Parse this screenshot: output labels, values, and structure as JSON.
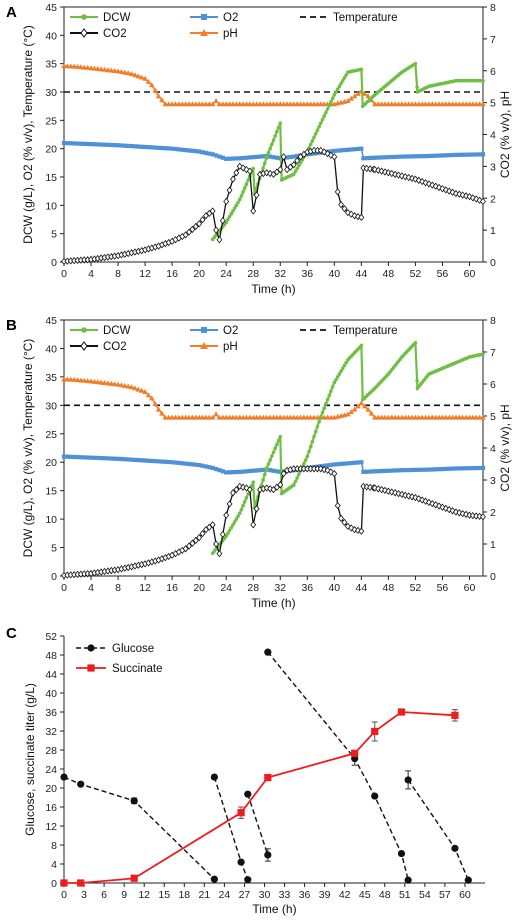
{
  "figure": {
    "background": "#ffffff"
  },
  "colors": {
    "dcw": "#6fbf44",
    "o2": "#4f91d6",
    "co2": "#111111",
    "ph": "#f07f2c",
    "temperature": "#111111",
    "glucose": "#111111",
    "succinate": "#ee1c1c"
  },
  "chart_data": [
    {
      "panel_label": "A",
      "type": "line",
      "xlabel": "Time (h)",
      "ylabel_left": "DCW (g/L), O2 (% v/v), Temperature (°C)",
      "ylabel_right": "CO2 (% v/v), pH",
      "xlim": [
        0,
        62
      ],
      "ylim_left": [
        0,
        45
      ],
      "ylim_right": [
        0,
        8
      ],
      "xticks": [
        "0",
        "4",
        "8",
        "12",
        "16",
        "20",
        "24",
        "28",
        "32",
        "36",
        "40",
        "44",
        "48",
        "52",
        "56",
        "60"
      ],
      "yticks_left": [
        "0",
        "5",
        "10",
        "15",
        "20",
        "25",
        "30",
        "35",
        "40",
        "45"
      ],
      "yticks_right": [
        "0",
        "1",
        "2",
        "3",
        "4",
        "5",
        "6",
        "7",
        "8"
      ],
      "legend": [
        {
          "key": "dcw",
          "label": "DCW"
        },
        {
          "key": "o2",
          "label": "O2"
        },
        {
          "key": "temperature",
          "label": "Temperature"
        },
        {
          "key": "co2",
          "label": "CO2"
        },
        {
          "key": "ph",
          "label": "pH"
        }
      ],
      "series": [
        {
          "key": "dcw",
          "name": "DCW",
          "axis": "left",
          "x": [
            22,
            24,
            26,
            28,
            28.2,
            30,
            32,
            32.2,
            34,
            36,
            38,
            40,
            42,
            44,
            44.2,
            46,
            48,
            50,
            52,
            52.3,
            54,
            56,
            58,
            60,
            62
          ],
          "y": [
            4,
            7,
            11,
            16.5,
            12,
            18.5,
            24.5,
            14.5,
            15.5,
            19.5,
            24.5,
            29.5,
            33.5,
            34,
            27.5,
            29.5,
            31.5,
            33.5,
            35,
            30,
            31,
            31.5,
            32,
            32,
            32
          ]
        },
        {
          "key": "o2",
          "name": "O2",
          "axis": "left",
          "x": [
            0,
            4,
            8,
            12,
            16,
            20,
            22,
            24,
            26,
            28,
            30,
            32,
            34,
            36,
            38,
            40,
            42,
            44,
            44.3,
            46,
            50,
            54,
            58,
            62
          ],
          "y": [
            21,
            20.8,
            20.6,
            20.3,
            20,
            19.5,
            19,
            18.2,
            18.3,
            18.5,
            18.7,
            18.3,
            18.6,
            19,
            19.3,
            19.6,
            19.8,
            20,
            18.3,
            18.4,
            18.6,
            18.7,
            18.9,
            19
          ]
        },
        {
          "key": "temperature",
          "name": "Temperature",
          "axis": "left",
          "x": [
            0,
            62
          ],
          "y": [
            30,
            30
          ]
        },
        {
          "key": "co2",
          "name": "CO2",
          "axis": "right",
          "x": [
            0,
            4,
            8,
            12,
            14,
            16,
            18,
            20,
            21,
            22,
            22.5,
            23,
            24,
            25,
            26,
            27,
            27.5,
            28,
            28.5,
            29,
            30,
            31,
            32,
            32.5,
            33,
            34,
            35,
            36,
            37,
            38,
            39,
            40,
            40.5,
            41,
            42,
            43,
            44,
            44.3,
            46,
            48,
            50,
            52,
            54,
            56,
            58,
            60,
            62
          ],
          "y": [
            0.02,
            0.08,
            0.2,
            0.38,
            0.5,
            0.65,
            0.85,
            1.2,
            1.45,
            1.6,
            1.0,
            0.7,
            1.9,
            2.6,
            3.0,
            2.9,
            2.85,
            1.6,
            2.1,
            2.75,
            2.8,
            2.75,
            2.9,
            3.3,
            2.9,
            3.05,
            3.3,
            3.45,
            3.5,
            3.5,
            3.4,
            3.3,
            2.2,
            1.8,
            1.55,
            1.45,
            1.4,
            2.95,
            2.9,
            2.8,
            2.7,
            2.6,
            2.45,
            2.3,
            2.15,
            2.05,
            1.9
          ]
        },
        {
          "key": "ph",
          "name": "pH",
          "axis": "right",
          "x": [
            0,
            2,
            4,
            6,
            8,
            10,
            12,
            13,
            14,
            15,
            16,
            18,
            20,
            22,
            22.5,
            23,
            24,
            26,
            28,
            30,
            32,
            34,
            36,
            38,
            40,
            42,
            43,
            44,
            45,
            46,
            47,
            48,
            50,
            52,
            54,
            56,
            58,
            60,
            62
          ],
          "y": [
            6.15,
            6.12,
            6.08,
            6.03,
            5.98,
            5.9,
            5.75,
            5.55,
            5.2,
            4.95,
            4.95,
            4.95,
            4.95,
            4.95,
            5.05,
            4.95,
            4.95,
            4.95,
            4.95,
            4.95,
            4.95,
            4.95,
            4.95,
            4.95,
            4.95,
            5.05,
            5.2,
            5.35,
            5.2,
            4.95,
            4.95,
            4.95,
            4.95,
            4.95,
            4.95,
            4.95,
            4.95,
            4.95,
            4.95
          ]
        }
      ]
    },
    {
      "panel_label": "B",
      "type": "line",
      "xlabel": "Time (h)",
      "ylabel_left": "DCW (g/L), O2 (% v/v), Temperature (°C)",
      "ylabel_right": "CO2 (% v/v), pH",
      "xlim": [
        0,
        62
      ],
      "ylim_left": [
        0,
        45
      ],
      "ylim_right": [
        0,
        8
      ],
      "xticks": [
        "0",
        "4",
        "8",
        "12",
        "16",
        "20",
        "24",
        "28",
        "32",
        "36",
        "40",
        "44",
        "48",
        "52",
        "56",
        "60"
      ],
      "yticks_left": [
        "0",
        "5",
        "10",
        "15",
        "20",
        "25",
        "30",
        "35",
        "40",
        "45"
      ],
      "yticks_right": [
        "0",
        "1",
        "2",
        "3",
        "4",
        "5",
        "6",
        "7",
        "8"
      ],
      "legend": [
        {
          "key": "dcw",
          "label": "DCW"
        },
        {
          "key": "o2",
          "label": "O2"
        },
        {
          "key": "temperature",
          "label": "Temperature"
        },
        {
          "key": "co2",
          "label": "CO2"
        },
        {
          "key": "ph",
          "label": "pH"
        }
      ],
      "series": [
        {
          "key": "dcw",
          "name": "DCW",
          "axis": "left",
          "x": [
            22,
            24,
            26,
            28,
            28.2,
            30,
            32,
            32.2,
            34,
            36,
            38,
            40,
            42,
            44,
            44.2,
            46,
            48,
            50,
            52,
            52.3,
            54,
            56,
            58,
            60,
            62
          ],
          "y": [
            4,
            7,
            11,
            16.5,
            12,
            19,
            24.5,
            14.5,
            16,
            21,
            28,
            34,
            38,
            40.5,
            31,
            33,
            35.5,
            38.5,
            41,
            33,
            35.5,
            36.5,
            37.5,
            38.5,
            39
          ]
        },
        {
          "key": "o2",
          "name": "O2",
          "axis": "left",
          "x": [
            0,
            4,
            8,
            12,
            16,
            20,
            22,
            24,
            26,
            28,
            30,
            32,
            34,
            36,
            38,
            40,
            42,
            44,
            44.3,
            46,
            50,
            54,
            58,
            62
          ],
          "y": [
            21,
            20.8,
            20.6,
            20.3,
            20,
            19.5,
            19,
            18.2,
            18.3,
            18.5,
            18.7,
            18.3,
            18.6,
            19,
            19.3,
            19.6,
            19.8,
            20,
            18.3,
            18.4,
            18.6,
            18.7,
            18.9,
            19
          ]
        },
        {
          "key": "temperature",
          "name": "Temperature",
          "axis": "left",
          "x": [
            0,
            62
          ],
          "y": [
            30,
            30
          ]
        },
        {
          "key": "co2",
          "name": "CO2",
          "axis": "right",
          "x": [
            0,
            4,
            8,
            12,
            14,
            16,
            18,
            20,
            21,
            22,
            22.5,
            23,
            24,
            25,
            26,
            27,
            27.5,
            28,
            28.5,
            29,
            30,
            31,
            32,
            32.5,
            33,
            34,
            35,
            36,
            37,
            38,
            39,
            40,
            40.5,
            41,
            42,
            43,
            44,
            44.3,
            46,
            48,
            50,
            52,
            54,
            56,
            58,
            60,
            62
          ],
          "y": [
            0.02,
            0.08,
            0.2,
            0.38,
            0.5,
            0.65,
            0.85,
            1.2,
            1.45,
            1.6,
            1.0,
            0.7,
            1.9,
            2.6,
            2.8,
            2.75,
            2.7,
            1.6,
            2.1,
            2.7,
            2.75,
            2.7,
            2.85,
            3.2,
            3.3,
            3.35,
            3.35,
            3.35,
            3.35,
            3.35,
            3.3,
            3.2,
            2.2,
            1.8,
            1.55,
            1.45,
            1.4,
            2.8,
            2.75,
            2.65,
            2.55,
            2.45,
            2.3,
            2.15,
            2.0,
            1.9,
            1.85
          ]
        },
        {
          "key": "ph",
          "name": "pH",
          "axis": "right",
          "x": [
            0,
            2,
            4,
            6,
            8,
            10,
            12,
            13,
            14,
            15,
            16,
            18,
            20,
            22,
            22.5,
            23,
            24,
            26,
            28,
            30,
            32,
            34,
            36,
            38,
            40,
            42,
            43,
            44,
            45,
            46,
            47,
            48,
            50,
            52,
            54,
            56,
            58,
            60,
            62
          ],
          "y": [
            6.15,
            6.12,
            6.08,
            6.03,
            5.98,
            5.9,
            5.75,
            5.55,
            5.2,
            4.95,
            4.95,
            4.95,
            4.95,
            4.95,
            5.05,
            4.95,
            4.95,
            4.95,
            4.95,
            4.95,
            4.95,
            4.95,
            4.95,
            4.95,
            4.95,
            5.05,
            5.2,
            5.4,
            5.2,
            4.95,
            4.95,
            4.95,
            4.95,
            4.95,
            4.95,
            4.95,
            4.95,
            4.95,
            4.95
          ]
        }
      ]
    },
    {
      "panel_label": "C",
      "type": "line",
      "xlabel": "Time (h)",
      "ylabel": "Glucose, succinate titer (g/L)",
      "xlim": [
        0,
        63
      ],
      "ylim": [
        0,
        52
      ],
      "xticks": [
        "0",
        "3",
        "6",
        "9",
        "12",
        "15",
        "18",
        "21",
        "24",
        "27",
        "30",
        "33",
        "36",
        "39",
        "42",
        "45",
        "48",
        "51",
        "54",
        "57",
        "60"
      ],
      "yticks": [
        "0",
        "4",
        "8",
        "12",
        "16",
        "20",
        "24",
        "28",
        "32",
        "36",
        "40",
        "44",
        "48",
        "52"
      ],
      "legend": [
        {
          "key": "glucose",
          "label": "Glucose"
        },
        {
          "key": "succinate",
          "label": "Succinate"
        }
      ],
      "glucose_segments": [
        {
          "x": [
            0,
            2.5,
            10.5,
            22.5
          ],
          "y": [
            22.3,
            20.8,
            17.3,
            0.8
          ],
          "err": [
            0,
            0,
            0.6,
            0
          ]
        },
        {
          "x": [
            22.5,
            26.5,
            27.5
          ],
          "y": [
            22.3,
            4.4,
            0.7
          ],
          "err": [
            0,
            0,
            0
          ]
        },
        {
          "x": [
            27.5,
            30.5
          ],
          "y": [
            18.7,
            5.9
          ],
          "err": [
            0,
            1.3
          ],
          "hidden_first_marker": false
        },
        {
          "x": [
            30.5,
            43.5,
            46.5,
            50.5,
            51.5
          ],
          "y": [
            48.6,
            26.2,
            18.3,
            6.2,
            0.6
          ],
          "err": [
            0,
            1.4,
            0,
            0,
            0
          ]
        },
        {
          "x": [
            51.5,
            58.5,
            60.5
          ],
          "y": [
            21.7,
            7.3,
            0.6
          ],
          "err": [
            1.9,
            0,
            0
          ]
        }
      ],
      "series": [
        {
          "key": "succinate",
          "name": "Succinate",
          "x": [
            0,
            2.5,
            10.5,
            26.5,
            30.5,
            43.5,
            46.5,
            50.5,
            58.5
          ],
          "y": [
            0,
            0,
            1,
            14.8,
            22.2,
            27.3,
            31.9,
            36,
            35.3
          ],
          "err": [
            0,
            0,
            0,
            1.2,
            0,
            0.5,
            2,
            0,
            1.2
          ]
        }
      ]
    }
  ]
}
